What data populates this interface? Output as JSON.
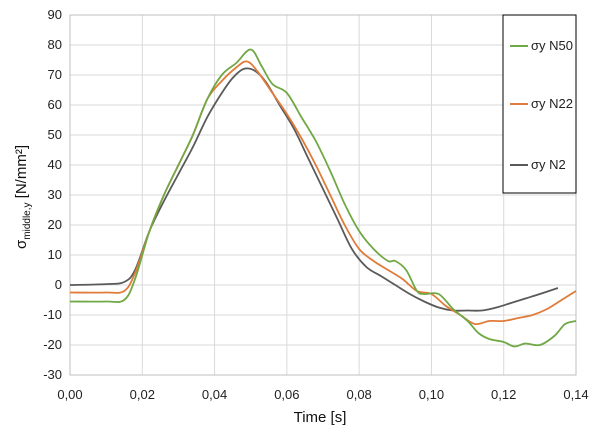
{
  "chart_data": {
    "type": "line",
    "title": "",
    "xlabel": "Time [s]",
    "ylabel": {
      "base": "σ",
      "sub": "middle,y",
      "unit": " [N/mm²]"
    },
    "xlim": [
      0,
      0.14
    ],
    "ylim": [
      -30,
      90
    ],
    "xticks": [
      0,
      0.02,
      0.04,
      0.06,
      0.08,
      0.1,
      0.12,
      0.14
    ],
    "xtick_labels": [
      "0,00",
      "0,02",
      "0,04",
      "0,06",
      "0,08",
      "0,10",
      "0,12",
      "0,14"
    ],
    "yticks": [
      -30,
      -20,
      -10,
      0,
      10,
      20,
      30,
      40,
      50,
      60,
      70,
      80,
      90
    ],
    "ytick_labels": [
      "-30",
      "-20",
      "-10",
      "0",
      "10",
      "20",
      "30",
      "40",
      "50",
      "60",
      "70",
      "80",
      "90"
    ],
    "grid": true,
    "legend_position": "top-right",
    "series": [
      {
        "name": "σy N50",
        "color": "#70a845",
        "x": [
          0.0,
          0.01,
          0.015,
          0.018,
          0.022,
          0.026,
          0.03,
          0.034,
          0.038,
          0.042,
          0.046,
          0.05,
          0.053,
          0.056,
          0.06,
          0.064,
          0.068,
          0.072,
          0.076,
          0.08,
          0.084,
          0.088,
          0.09,
          0.093,
          0.096,
          0.098,
          0.102,
          0.106,
          0.11,
          0.113,
          0.116,
          0.12,
          0.123,
          0.126,
          0.13,
          0.134,
          0.137,
          0.14
        ],
        "y": [
          -5.5,
          -5.5,
          -5,
          2,
          18,
          30,
          40,
          50,
          62,
          70,
          74,
          78.5,
          73,
          67,
          64,
          56,
          48,
          38,
          27,
          18,
          12,
          8,
          8,
          5,
          -2,
          -3,
          -3,
          -8,
          -12,
          -16,
          -18,
          -19,
          -20.5,
          -19.5,
          -20,
          -17,
          -13,
          -12
        ]
      },
      {
        "name": "σy N22",
        "color": "#e07b39",
        "x": [
          0.0,
          0.01,
          0.015,
          0.018,
          0.022,
          0.026,
          0.03,
          0.034,
          0.038,
          0.042,
          0.046,
          0.049,
          0.052,
          0.056,
          0.06,
          0.064,
          0.068,
          0.072,
          0.076,
          0.08,
          0.084,
          0.088,
          0.092,
          0.096,
          0.1,
          0.104,
          0.108,
          0.112,
          0.116,
          0.12,
          0.124,
          0.128,
          0.132,
          0.136,
          0.14
        ],
        "y": [
          -2.5,
          -2.5,
          -2,
          4,
          18,
          30,
          40,
          50,
          62,
          68,
          72.5,
          74.5,
          71,
          64,
          57,
          49,
          40,
          30,
          20,
          12,
          8,
          5,
          2,
          -2,
          -3,
          -7,
          -10,
          -13,
          -12,
          -12,
          -11,
          -10,
          -8,
          -5,
          -2
        ]
      },
      {
        "name": "σy N2",
        "color": "#5a5a5a",
        "x": [
          0.0,
          0.01,
          0.015,
          0.018,
          0.022,
          0.026,
          0.03,
          0.034,
          0.038,
          0.042,
          0.045,
          0.048,
          0.051,
          0.054,
          0.058,
          0.062,
          0.066,
          0.07,
          0.074,
          0.078,
          0.082,
          0.086,
          0.09,
          0.094,
          0.098,
          0.102,
          0.106,
          0.11,
          0.114,
          0.118,
          0.122,
          0.126,
          0.13,
          0.135
        ],
        "y": [
          0,
          0.3,
          1,
          5,
          18,
          28,
          37,
          46,
          56,
          64,
          69,
          72,
          71.5,
          68,
          60,
          52,
          42,
          32,
          22,
          12,
          6,
          3,
          0,
          -3,
          -5.5,
          -7.5,
          -8.5,
          -8.5,
          -8.5,
          -7.5,
          -6,
          -4.5,
          -3,
          -1
        ]
      }
    ]
  }
}
